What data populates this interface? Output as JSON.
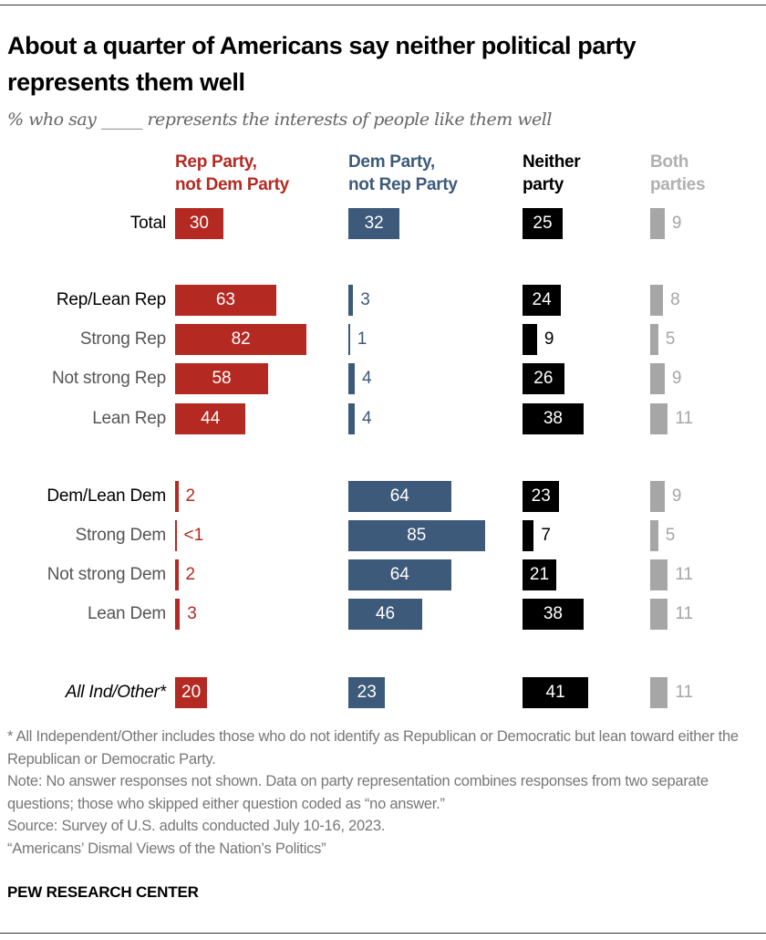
{
  "title": "About a quarter of Americans say neither political party represents them well",
  "subtitle": "% who say _____ represents the interests of people like them well",
  "chart_data": {
    "type": "bar",
    "orientation": "horizontal",
    "series": [
      {
        "name": "Rep Party, not Dem Party",
        "color": "#b42a22",
        "values": [
          30,
          63,
          82,
          58,
          44,
          2,
          0.5,
          2,
          3,
          20
        ],
        "labels": [
          "30",
          "63",
          "82",
          "58",
          "44",
          "2",
          "<1",
          "2",
          "3",
          "20"
        ]
      },
      {
        "name": "Dem Party, not Rep Party",
        "color": "#3d5a7a",
        "values": [
          32,
          3,
          1,
          4,
          4,
          64,
          85,
          64,
          46,
          23
        ],
        "labels": [
          "32",
          "3",
          "1",
          "4",
          "4",
          "64",
          "85",
          "64",
          "46",
          "23"
        ]
      },
      {
        "name": "Neither party",
        "color": "#000000",
        "values": [
          25,
          24,
          9,
          26,
          38,
          23,
          7,
          21,
          38,
          41
        ],
        "labels": [
          "25",
          "24",
          "9",
          "26",
          "38",
          "23",
          "7",
          "21",
          "38",
          "41"
        ]
      },
      {
        "name": "Both parties",
        "color": "#a6a6a6",
        "values": [
          9,
          8,
          5,
          9,
          11,
          9,
          5,
          11,
          11,
          11
        ],
        "labels": [
          "9",
          "8",
          "5",
          "9",
          "11",
          "9",
          "5",
          "11",
          "11",
          "11"
        ]
      }
    ],
    "column_headers": [
      [
        "Rep Party,",
        "not Dem Party"
      ],
      [
        "Dem Party,",
        "not Rep Party"
      ],
      [
        "Neither",
        "party"
      ],
      [
        "Both",
        "parties"
      ]
    ],
    "categories": [
      "Total",
      "Rep/Lean Rep",
      "Strong Rep",
      "Not strong Rep",
      "Lean Rep",
      "Dem/Lean Dem",
      "Strong Dem",
      "Not strong Dem",
      "Lean Dem",
      "All Ind/Other*"
    ],
    "category_styles": [
      "main",
      "main",
      "sub",
      "sub",
      "sub",
      "main",
      "sub",
      "sub",
      "sub",
      "italic"
    ],
    "grid": false,
    "legend": "column headers on top"
  },
  "notes": [
    "* All Independent/Other includes those who do not identify as Republican or Democratic but lean toward either the Republican or Democratic Party.",
    "Note: No answer responses not shown. Data on party representation combines responses from two separate questions; those who skipped either question coded as “no answer.”",
    "Source: Survey of U.S. adults conducted July 10-16, 2023.",
    "“Americans’ Dismal Views of the Nation’s Politics”"
  ],
  "brand": "PEW RESEARCH CENTER"
}
